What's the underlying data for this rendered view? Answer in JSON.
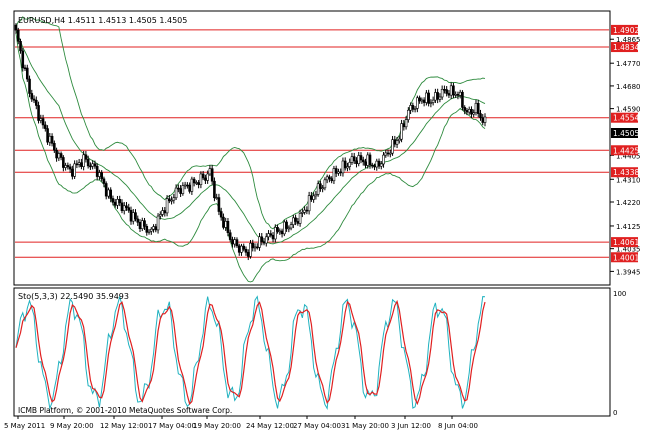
{
  "main_chart": {
    "header": "EURUSD,H4  1.4511 1.4513 1.4505 1.4505",
    "price_axis": [
      "1.4865",
      "1.4770",
      "1.4680",
      "1.4590",
      "1.4405",
      "1.4310",
      "1.4220",
      "1.4125",
      "1.4035",
      "1.3945"
    ],
    "level_lines": [
      "1.4902",
      "1.4834",
      "1.4554",
      "1.4425",
      "1.4338",
      "1.4061",
      "1.4001"
    ],
    "current_price": "1.4505",
    "colors": {
      "candle": "#000000",
      "bollinger": "#2e8b3e",
      "level_line": "#e02020",
      "label_bg": "#e02020",
      "label_text": "#ffffff",
      "current_bg": "#000000"
    }
  },
  "indicator": {
    "header": "Sto(5,3,3) 22.5490 35.9493",
    "axis": [
      "100",
      "0"
    ],
    "copyright": "ICMB Platform, © 2001-2010 MetaQuotes Software Corp.",
    "colors": {
      "main_line": "#20b2c0",
      "signal_line": "#e02020"
    }
  },
  "time_axis": [
    "5 May 2011",
    "9 May 20:00",
    "12 May 12:00",
    "17 May 04:00",
    "19 May 20:00",
    "24 May 12:00",
    "27 May 04:00",
    "31 May 20:00",
    "3 Jun 12:00",
    "8 Jun 04:00"
  ]
}
